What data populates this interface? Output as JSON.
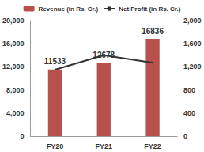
{
  "chart_data": {
    "type": "bar",
    "categories": [
      "FY20",
      "FY21",
      "FY22"
    ],
    "series": [
      {
        "name": "Revenue (in Rs. Cr.)",
        "type": "bar",
        "color": "#b8504b",
        "values": [
          11533,
          12678,
          16836
        ],
        "data_labels": true
      },
      {
        "name": "Net Profit (in Rs. Cr.)",
        "type": "line",
        "color": "#333333",
        "axis": "y2",
        "values": [
          1150,
          1400,
          1270
        ]
      }
    ],
    "ylim": [
      0,
      20000
    ],
    "yticks": [
      0,
      4000,
      8000,
      12000,
      16000,
      20000
    ],
    "y2lim": [
      0,
      2000
    ],
    "y2ticks": [
      0,
      400,
      800,
      1200,
      1600,
      2000
    ],
    "grid": false,
    "legend": "top"
  }
}
